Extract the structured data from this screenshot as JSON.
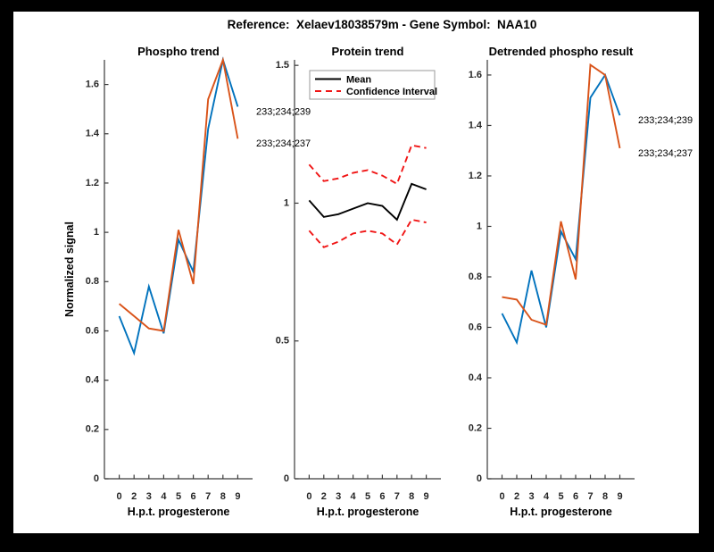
{
  "window": {
    "background": "#000000",
    "canvas_background": "#ffffff"
  },
  "figure": {
    "title": "Reference:  Xelaev18038579m - Gene Symbol:  NAA10"
  },
  "palette": {
    "blue": "#0072BD",
    "orange": "#D95319",
    "mean_black": "#000000",
    "ci_red": "#F01515",
    "axis": "#3a3a3a",
    "tick_text": "#262626",
    "label_text": "#000000",
    "legend_border": "#9a9a9a"
  },
  "chart_data": [
    {
      "type": "line",
      "title": "Phospho trend",
      "xlabel": "H.p.t. progesterone",
      "ylabel": "Normalized signal",
      "x_tick_labels": [
        "0",
        "2",
        "3",
        "4",
        "5",
        "6",
        "7",
        "8",
        "9"
      ],
      "y_ticks": [
        0,
        0.2,
        0.4,
        0.6,
        0.8,
        1,
        1.2,
        1.4,
        1.6
      ],
      "ylim": [
        0,
        1.7
      ],
      "grid": false,
      "legend": null,
      "series": [
        {
          "name": "233;234;239",
          "color": "blue",
          "line_style": "solid",
          "end_label": "233;234;239",
          "values": [
            0.66,
            0.51,
            0.78,
            0.59,
            0.97,
            0.84,
            1.42,
            1.7,
            1.51
          ]
        },
        {
          "name": "233;234;237",
          "color": "orange",
          "line_style": "solid",
          "end_label": "233;234;237",
          "values": [
            0.71,
            0.66,
            0.61,
            0.6,
            1.01,
            0.79,
            1.54,
            1.7,
            1.38
          ]
        }
      ]
    },
    {
      "type": "line",
      "title": "Protein trend",
      "xlabel": "H.p.t. progesterone",
      "ylabel": "",
      "x_tick_labels": [
        "0",
        "2",
        "3",
        "4",
        "5",
        "6",
        "7",
        "8",
        "9"
      ],
      "y_ticks": [
        0,
        0.5,
        1,
        1.5
      ],
      "ylim": [
        0,
        1.52
      ],
      "grid": false,
      "legend": {
        "position": "northwest",
        "entries": [
          {
            "label": "Mean",
            "color": "mean_black",
            "line_style": "solid"
          },
          {
            "label": "Confidence Interval",
            "color": "ci_red",
            "line_style": "dashed"
          }
        ]
      },
      "series": [
        {
          "name": "Mean",
          "color": "mean_black",
          "line_style": "solid",
          "end_label": null,
          "values": [
            1.01,
            0.95,
            0.96,
            0.98,
            1.0,
            0.99,
            0.94,
            1.07,
            1.05
          ]
        },
        {
          "name": "Confidence Interval (upper)",
          "color": "ci_red",
          "line_style": "dashed",
          "end_label": null,
          "values": [
            1.14,
            1.08,
            1.09,
            1.11,
            1.12,
            1.1,
            1.07,
            1.21,
            1.2
          ]
        },
        {
          "name": "Confidence Interval (lower)",
          "color": "ci_red",
          "line_style": "dashed",
          "end_label": null,
          "values": [
            0.9,
            0.84,
            0.86,
            0.89,
            0.9,
            0.89,
            0.85,
            0.94,
            0.93
          ]
        }
      ]
    },
    {
      "type": "line",
      "title": "Detrended phospho result",
      "xlabel": "H.p.t. progesterone",
      "ylabel": "",
      "x_tick_labels": [
        "0",
        "2",
        "3",
        "4",
        "5",
        "6",
        "7",
        "8",
        "9"
      ],
      "y_ticks": [
        0,
        0.2,
        0.4,
        0.6,
        0.8,
        1,
        1.2,
        1.4,
        1.6
      ],
      "ylim": [
        0,
        1.66
      ],
      "grid": false,
      "legend": null,
      "series": [
        {
          "name": "233;234;239",
          "color": "blue",
          "line_style": "solid",
          "end_label": "233;234;239",
          "values": [
            0.655,
            0.54,
            0.825,
            0.6,
            0.98,
            0.87,
            1.51,
            1.6,
            1.44
          ]
        },
        {
          "name": "233;234;237",
          "color": "orange",
          "line_style": "solid",
          "end_label": "233;234;237",
          "values": [
            0.72,
            0.71,
            0.63,
            0.61,
            1.02,
            0.79,
            1.64,
            1.6,
            1.31
          ]
        }
      ]
    }
  ]
}
